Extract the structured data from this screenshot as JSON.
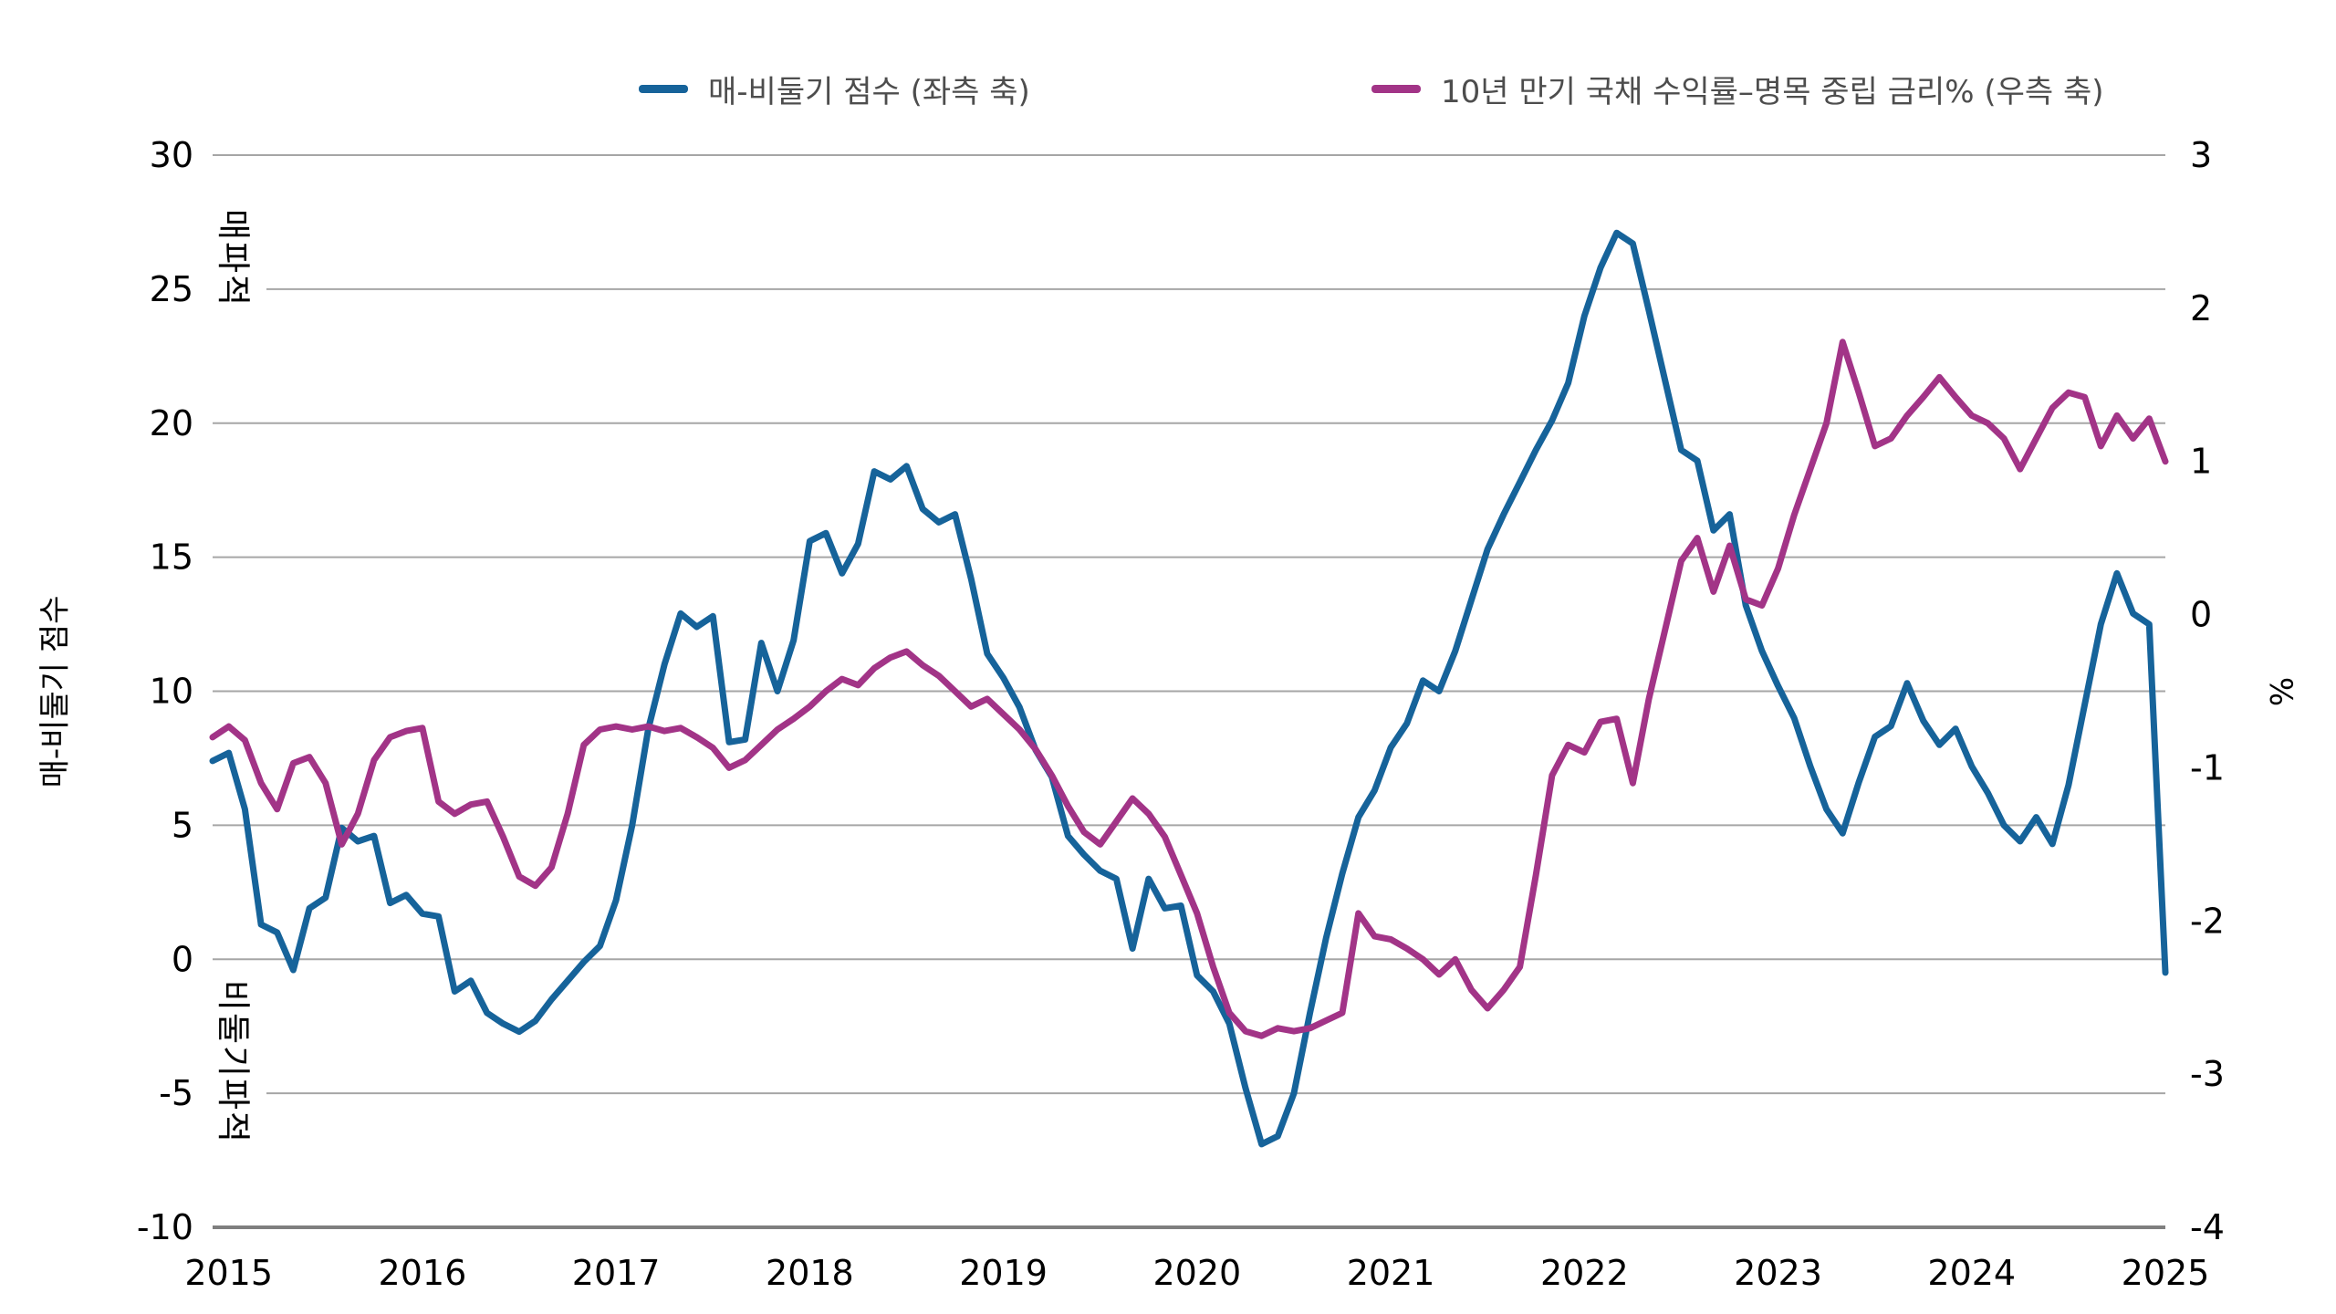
{
  "chart_data": {
    "type": "line",
    "title": "",
    "x_start": "2014-12",
    "x_end": "2025-01",
    "x_frequency": "monthly",
    "x_tick_labels": [
      "2015",
      "2016",
      "2017",
      "2018",
      "2019",
      "2020",
      "2021",
      "2022",
      "2023",
      "2024",
      "2025"
    ],
    "grid": "horizontal",
    "background": "#ffffff",
    "grid_color": "#a6a6a6",
    "axis_line_color": "#7f7f7f",
    "left_axis": {
      "title": "매-비둘기 점수",
      "min": -10,
      "max": 30,
      "ticks": [
        30,
        25,
        20,
        15,
        10,
        5,
        0,
        -5,
        -10
      ]
    },
    "right_axis": {
      "title": "%",
      "min": -4,
      "max": 3,
      "ticks": [
        3,
        2,
        1,
        0,
        -1,
        -2,
        -3,
        -4
      ]
    },
    "legend_position": "top",
    "annotations": [
      {
        "text": "매파적",
        "meaning": "hawkish-zone-label"
      },
      {
        "text": "비둘기파적",
        "meaning": "dovish-zone-label"
      }
    ],
    "series": [
      {
        "name": "매-비둘기 점수 (좌측 축)",
        "axis": "left",
        "color": "#16639a",
        "values": [
          7.4,
          7.7,
          5.6,
          1.3,
          1.0,
          -0.4,
          1.9,
          2.3,
          4.9,
          4.4,
          4.6,
          2.1,
          2.4,
          1.7,
          1.6,
          -1.2,
          -0.8,
          -2.0,
          -2.4,
          -2.7,
          -2.3,
          -1.5,
          -0.8,
          -0.1,
          0.5,
          2.2,
          5.0,
          8.6,
          11.0,
          12.9,
          12.4,
          12.8,
          8.1,
          8.2,
          11.8,
          10.0,
          11.9,
          15.6,
          15.9,
          14.4,
          15.5,
          18.2,
          17.9,
          18.4,
          16.8,
          16.3,
          16.6,
          14.2,
          11.4,
          10.5,
          9.4,
          7.8,
          6.8,
          4.6,
          3.9,
          3.3,
          3.0,
          0.4,
          3.0,
          1.9,
          2.0,
          -0.6,
          -1.2,
          -2.4,
          -4.8,
          -6.9,
          -6.6,
          -5.0,
          -2.0,
          0.8,
          3.2,
          5.3,
          6.3,
          7.9,
          8.8,
          10.4,
          10.0,
          11.5,
          13.4,
          15.3,
          16.6,
          17.8,
          19.0,
          20.1,
          21.5,
          24.0,
          25.8,
          27.1,
          26.7,
          24.2,
          21.6,
          19.0,
          18.6,
          16.0,
          16.6,
          13.2,
          11.5,
          10.2,
          9.0,
          7.2,
          5.6,
          4.7,
          6.6,
          8.3,
          8.7,
          10.3,
          8.9,
          8.0,
          8.6,
          7.2,
          6.2,
          5.0,
          4.4,
          5.3,
          4.3,
          6.5,
          9.5,
          12.5,
          14.4,
          12.9,
          12.5,
          -0.5
        ]
      },
      {
        "name": "10년 만기 국채 수익률–명목 중립 금리% (우측 축)",
        "axis": "right",
        "color": "#a23487",
        "values": [
          -0.8,
          -0.73,
          -0.82,
          -1.1,
          -1.27,
          -0.97,
          -0.93,
          -1.1,
          -1.5,
          -1.3,
          -0.95,
          -0.8,
          -0.76,
          -0.74,
          -1.22,
          -1.3,
          -1.24,
          -1.22,
          -1.45,
          -1.71,
          -1.77,
          -1.65,
          -1.3,
          -0.85,
          -0.75,
          -0.73,
          -0.75,
          -0.73,
          -0.76,
          -0.74,
          -0.8,
          -0.87,
          -1.0,
          -0.95,
          -0.85,
          -0.75,
          -0.68,
          -0.6,
          -0.5,
          -0.42,
          -0.46,
          -0.35,
          -0.28,
          -0.24,
          -0.33,
          -0.4,
          -0.5,
          -0.6,
          -0.55,
          -0.65,
          -0.75,
          -0.88,
          -1.05,
          -1.25,
          -1.42,
          -1.5,
          -1.35,
          -1.2,
          -1.3,
          -1.45,
          -1.7,
          -1.95,
          -2.3,
          -2.6,
          -2.72,
          -2.75,
          -2.7,
          -2.72,
          -2.7,
          -2.65,
          -2.6,
          -1.95,
          -2.1,
          -2.12,
          -2.18,
          -2.25,
          -2.35,
          -2.25,
          -2.45,
          -2.57,
          -2.45,
          -2.3,
          -1.7,
          -1.05,
          -0.85,
          -0.9,
          -0.7,
          -0.68,
          -1.1,
          -0.55,
          -0.1,
          0.35,
          0.5,
          0.15,
          0.45,
          0.1,
          0.06,
          0.3,
          0.65,
          0.95,
          1.25,
          1.78,
          1.45,
          1.1,
          1.15,
          1.3,
          1.42,
          1.55,
          1.42,
          1.3,
          1.25,
          1.15,
          0.95,
          1.15,
          1.35,
          1.45,
          1.42,
          1.1,
          1.3,
          1.15,
          1.28,
          1.0
        ]
      }
    ]
  }
}
